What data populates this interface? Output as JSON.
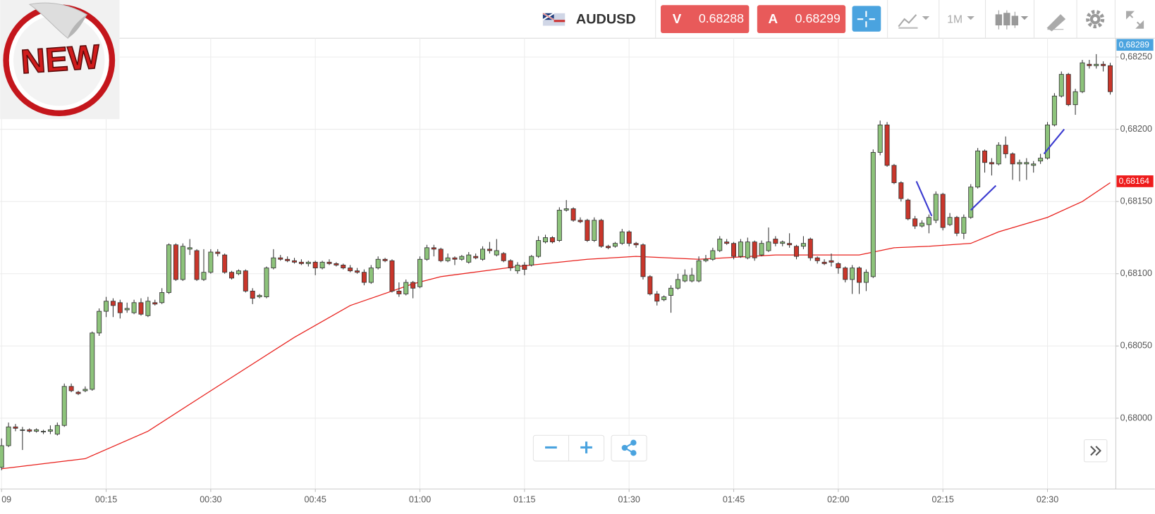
{
  "badge": "NEW",
  "toolbar": {
    "symbol": "AUDUSD",
    "sell": {
      "label": "V",
      "price": 0.68288
    },
    "buy": {
      "label": "A",
      "price": 0.68299
    },
    "timeframe": "1M"
  },
  "chart_data": {
    "type": "candlestick",
    "up_color": "#8dc37b",
    "down_color": "#c9362b",
    "grid": true,
    "xlim": [
      -0.2,
      159.8
    ],
    "ylim": [
      0.67951,
      0.68263
    ],
    "yticks": [
      {
        "value": 0.68,
        "label": "0,68000"
      },
      {
        "value": 0.6805,
        "label": "0,68050"
      },
      {
        "value": 0.681,
        "label": "0,68100"
      },
      {
        "value": 0.6815,
        "label": "0,68150"
      },
      {
        "value": 0.682,
        "label": "0,68200"
      },
      {
        "value": 0.6825,
        "label": "0,68250"
      }
    ],
    "xticks": [
      {
        "value": 0,
        "label": "09"
      },
      {
        "value": 15,
        "label": "00:15"
      },
      {
        "value": 30,
        "label": "00:30"
      },
      {
        "value": 45,
        "label": "00:45"
      },
      {
        "value": 60,
        "label": "01:00"
      },
      {
        "value": 75,
        "label": "01:15"
      },
      {
        "value": 90,
        "label": "01:30"
      },
      {
        "value": 105,
        "label": "01:45"
      },
      {
        "value": 120,
        "label": "02:00"
      },
      {
        "value": 135,
        "label": "02:15"
      },
      {
        "value": 150,
        "label": "02:30"
      }
    ],
    "x": [
      0,
      1,
      2,
      3,
      4,
      5,
      6,
      7,
      8,
      9,
      10,
      11,
      12,
      13,
      14,
      15,
      16,
      17,
      18,
      19,
      20,
      21,
      22,
      23,
      24,
      25,
      26,
      27,
      28,
      29,
      30,
      31,
      32,
      33,
      34,
      35,
      36,
      37,
      38,
      39,
      40,
      41,
      42,
      43,
      44,
      45,
      46,
      47,
      48,
      49,
      50,
      51,
      52,
      53,
      54,
      55,
      56,
      57,
      58,
      59,
      60,
      61,
      62,
      63,
      64,
      65,
      66,
      67,
      68,
      69,
      70,
      71,
      72,
      73,
      74,
      75,
      76,
      77,
      78,
      79,
      80,
      81,
      82,
      83,
      84,
      85,
      86,
      87,
      88,
      89,
      90,
      91,
      92,
      93,
      94,
      95,
      96,
      97,
      98,
      99,
      100,
      101,
      102,
      103,
      104,
      105,
      106,
      107,
      108,
      109,
      110,
      111,
      112,
      113,
      114,
      115,
      116,
      117,
      118,
      119,
      120,
      121,
      122,
      123,
      124,
      125,
      126,
      127,
      128,
      129,
      130,
      131,
      132,
      133,
      134,
      135,
      136,
      137,
      138,
      139,
      140,
      141,
      142,
      143,
      144,
      145,
      146,
      147,
      148,
      149,
      150,
      151,
      152,
      153,
      154,
      155,
      156,
      157,
      158,
      159
    ],
    "open": [
      0.67966,
      0.67981,
      0.67994,
      0.67992,
      0.67992,
      0.67991,
      0.67991,
      0.67991,
      0.67989,
      0.67995,
      0.68022,
      0.68018,
      0.68019,
      0.6802,
      0.68059,
      0.68074,
      0.68081,
      0.6808,
      0.68075,
      0.68073,
      0.6808,
      0.68071,
      0.6808,
      0.6808,
      0.68087,
      0.6812,
      0.68096,
      0.68117,
      0.68116,
      0.68096,
      0.68101,
      0.68115,
      0.68113,
      0.68101,
      0.681,
      0.68102,
      0.68088,
      0.68084,
      0.68084,
      0.68104,
      0.68111,
      0.6811,
      0.68109,
      0.68108,
      0.68107,
      0.68108,
      0.68104,
      0.68108,
      0.68107,
      0.68106,
      0.68104,
      0.68102,
      0.68101,
      0.68094,
      0.68104,
      0.6811,
      0.68109,
      0.68088,
      0.68086,
      0.68094,
      0.68091,
      0.6811,
      0.68118,
      0.68117,
      0.68109,
      0.68111,
      0.6811,
      0.68108,
      0.68112,
      0.6811,
      0.68117,
      0.68113,
      0.68114,
      0.68109,
      0.68102,
      0.68106,
      0.68106,
      0.68112,
      0.68122,
      0.68125,
      0.68123,
      0.68144,
      0.68145,
      0.68137,
      0.68137,
      0.68123,
      0.68137,
      0.68119,
      0.68119,
      0.68121,
      0.68129,
      0.68121,
      0.6812,
      0.68098,
      0.68086,
      0.68082,
      0.68085,
      0.6809,
      0.68095,
      0.68095,
      0.68095,
      0.68109,
      0.6811,
      0.68116,
      0.68122,
      0.68121,
      0.68112,
      0.68111,
      0.68122,
      0.68113,
      0.68116,
      0.68124,
      0.68121,
      0.68121,
      0.68119,
      0.68119,
      0.68124,
      0.68111,
      0.68108,
      0.68109,
      0.68107,
      0.68104,
      0.68096,
      0.68104,
      0.68094,
      0.68098,
      0.68184,
      0.68203,
      0.68175,
      0.68163,
      0.68151,
      0.68138,
      0.68133,
      0.68134,
      0.68137,
      0.68155,
      0.68134,
      0.68139,
      0.68128,
      0.68139,
      0.6816,
      0.68185,
      0.68177,
      0.68176,
      0.68189,
      0.68183,
      0.68176,
      0.68176,
      0.68175,
      0.68178,
      0.6818,
      0.68203,
      0.68223,
      0.68238,
      0.68217,
      0.68226,
      0.68245,
      0.68244,
      0.68245,
      0.68244
    ],
    "high": [
      0.67986,
      0.67997,
      0.67996,
      0.67994,
      0.67993,
      0.67993,
      0.67992,
      0.67995,
      0.67997,
      0.68024,
      0.68024,
      0.68019,
      0.68022,
      0.6806,
      0.68076,
      0.68084,
      0.68083,
      0.68082,
      0.6808,
      0.68082,
      0.68083,
      0.68084,
      0.68082,
      0.6809,
      0.68121,
      0.68121,
      0.68121,
      0.68124,
      0.68117,
      0.68117,
      0.68117,
      0.68117,
      0.68114,
      0.68102,
      0.68103,
      0.68103,
      0.6809,
      0.68086,
      0.68105,
      0.68117,
      0.68113,
      0.68112,
      0.68111,
      0.6811,
      0.68109,
      0.68109,
      0.68109,
      0.6811,
      0.68108,
      0.68107,
      0.68106,
      0.68104,
      0.68103,
      0.68106,
      0.68112,
      0.68111,
      0.6811,
      0.68094,
      0.68096,
      0.68095,
      0.68112,
      0.6812,
      0.6812,
      0.68118,
      0.68114,
      0.68112,
      0.68113,
      0.68115,
      0.68114,
      0.68119,
      0.68122,
      0.68124,
      0.68115,
      0.6811,
      0.68108,
      0.68108,
      0.68113,
      0.68126,
      0.68127,
      0.68126,
      0.68146,
      0.68151,
      0.68146,
      0.68139,
      0.68138,
      0.68139,
      0.68138,
      0.6812,
      0.68122,
      0.68131,
      0.6813,
      0.68122,
      0.68121,
      0.68099,
      0.68088,
      0.68085,
      0.68092,
      0.681,
      0.68103,
      0.68104,
      0.68112,
      0.68113,
      0.68118,
      0.68126,
      0.68124,
      0.68122,
      0.68124,
      0.68125,
      0.68123,
      0.68123,
      0.68132,
      0.68126,
      0.68123,
      0.68128,
      0.6812,
      0.68126,
      0.68125,
      0.68112,
      0.6811,
      0.68114,
      0.68108,
      0.68105,
      0.68106,
      0.68105,
      0.68103,
      0.68186,
      0.68206,
      0.68205,
      0.68176,
      0.68164,
      0.68152,
      0.6814,
      0.68137,
      0.68141,
      0.68157,
      0.68156,
      0.68142,
      0.6814,
      0.68141,
      0.68162,
      0.68187,
      0.68186,
      0.6818,
      0.68191,
      0.68195,
      0.68184,
      0.68179,
      0.6818,
      0.68178,
      0.68183,
      0.68205,
      0.68225,
      0.6824,
      0.68239,
      0.68228,
      0.68248,
      0.68248,
      0.68252,
      0.68247,
      0.68246
    ],
    "low": [
      0.67964,
      0.6798,
      0.67991,
      0.67978,
      0.6799,
      0.6799,
      0.67989,
      0.67989,
      0.67988,
      0.67994,
      0.68018,
      0.68016,
      0.68018,
      0.68019,
      0.68057,
      0.6807,
      0.6807,
      0.68069,
      0.68073,
      0.68072,
      0.68071,
      0.6807,
      0.68078,
      0.68079,
      0.68086,
      0.68095,
      0.68095,
      0.68113,
      0.68095,
      0.68095,
      0.681,
      0.68112,
      0.681,
      0.68096,
      0.68099,
      0.68087,
      0.68079,
      0.68083,
      0.68083,
      0.68103,
      0.68109,
      0.68108,
      0.68107,
      0.68106,
      0.68105,
      0.68099,
      0.68103,
      0.68106,
      0.68105,
      0.68103,
      0.68101,
      0.681,
      0.68092,
      0.68093,
      0.68103,
      0.68108,
      0.68087,
      0.68084,
      0.68085,
      0.68083,
      0.6809,
      0.68109,
      0.68112,
      0.68108,
      0.68108,
      0.68106,
      0.68109,
      0.68107,
      0.6811,
      0.68109,
      0.68114,
      0.68112,
      0.68108,
      0.68102,
      0.681,
      0.68099,
      0.68105,
      0.68111,
      0.68121,
      0.68121,
      0.68122,
      0.68143,
      0.68136,
      0.68135,
      0.68122,
      0.68122,
      0.68118,
      0.68117,
      0.68118,
      0.6812,
      0.68119,
      0.68118,
      0.68096,
      0.68085,
      0.68078,
      0.68081,
      0.68073,
      0.68089,
      0.68094,
      0.68094,
      0.68094,
      0.68108,
      0.68109,
      0.68115,
      0.6812,
      0.6811,
      0.68111,
      0.6811,
      0.68109,
      0.68112,
      0.68115,
      0.68119,
      0.68119,
      0.68118,
      0.6811,
      0.68117,
      0.68109,
      0.68107,
      0.68106,
      0.68105,
      0.681,
      0.68094,
      0.68086,
      0.68086,
      0.68088,
      0.68097,
      0.68182,
      0.68174,
      0.68162,
      0.6815,
      0.68137,
      0.68131,
      0.68132,
      0.68128,
      0.68135,
      0.6813,
      0.68133,
      0.68126,
      0.68124,
      0.68138,
      0.68159,
      0.6817,
      0.68168,
      0.68175,
      0.6818,
      0.68165,
      0.68164,
      0.68165,
      0.6817,
      0.68176,
      0.68179,
      0.68202,
      0.68222,
      0.68216,
      0.6821,
      0.68225,
      0.68242,
      0.68242,
      0.6824,
      0.68224
    ],
    "close": [
      0.67981,
      0.67994,
      0.67993,
      0.67992,
      0.67991,
      0.67992,
      0.67991,
      0.67992,
      0.67995,
      0.68022,
      0.68019,
      0.68017,
      0.6802,
      0.68059,
      0.68074,
      0.68081,
      0.68078,
      0.68073,
      0.68076,
      0.6808,
      0.68072,
      0.68081,
      0.68079,
      0.68087,
      0.6812,
      0.68096,
      0.68119,
      0.68118,
      0.68096,
      0.68101,
      0.68115,
      0.68114,
      0.68101,
      0.68097,
      0.68102,
      0.68088,
      0.68083,
      0.68085,
      0.68104,
      0.68111,
      0.6811,
      0.68109,
      0.68108,
      0.68107,
      0.68108,
      0.68104,
      0.68108,
      0.68107,
      0.68106,
      0.68104,
      0.68102,
      0.68101,
      0.68094,
      0.68104,
      0.6811,
      0.68109,
      0.68088,
      0.68086,
      0.68094,
      0.6809,
      0.6811,
      0.68118,
      0.68117,
      0.68109,
      0.68111,
      0.6811,
      0.68112,
      0.68113,
      0.68111,
      0.68117,
      0.68116,
      0.68116,
      0.68109,
      0.68104,
      0.68106,
      0.68103,
      0.68112,
      0.68123,
      0.68125,
      0.68122,
      0.68144,
      0.68145,
      0.68137,
      0.68136,
      0.68123,
      0.68137,
      0.68119,
      0.68118,
      0.68121,
      0.68129,
      0.68121,
      0.6812,
      0.68098,
      0.68086,
      0.68081,
      0.68084,
      0.6809,
      0.68096,
      0.68099,
      0.68099,
      0.68109,
      0.6811,
      0.68116,
      0.68124,
      0.68121,
      0.68112,
      0.68122,
      0.68122,
      0.68111,
      0.68121,
      0.68122,
      0.68121,
      0.68122,
      0.6812,
      0.68112,
      0.68121,
      0.68111,
      0.68109,
      0.68107,
      0.68108,
      0.68104,
      0.68096,
      0.68104,
      0.68094,
      0.68101,
      0.68184,
      0.68203,
      0.68175,
      0.68163,
      0.68152,
      0.68138,
      0.68133,
      0.68135,
      0.68139,
      0.68155,
      0.68132,
      0.68139,
      0.68128,
      0.68139,
      0.6816,
      0.68185,
      0.68177,
      0.68176,
      0.68189,
      0.68183,
      0.68176,
      0.68177,
      0.68177,
      0.68176,
      0.6818,
      0.68203,
      0.68223,
      0.68238,
      0.68217,
      0.68226,
      0.68246,
      0.68244,
      0.68245,
      0.68244,
      0.68226
    ],
    "moving_average": {
      "color": "#e8201c",
      "x": [
        0,
        12,
        21,
        30,
        42,
        50,
        59,
        63,
        74,
        84,
        91,
        100,
        111,
        123,
        128,
        133,
        139,
        143,
        150,
        155,
        159
      ],
      "values": [
        0.67965,
        0.67972,
        0.67991,
        0.68019,
        0.68056,
        0.68078,
        0.68093,
        0.68098,
        0.68105,
        0.6811,
        0.68112,
        0.6811,
        0.68113,
        0.68113,
        0.68118,
        0.68119,
        0.68121,
        0.68129,
        0.68139,
        0.6815,
        0.68163
      ]
    },
    "drawings": [
      {
        "color": "#3a3ad0",
        "x": [
          131.2,
          133.4
        ],
        "values": [
          0.68164,
          0.6814
        ]
      },
      {
        "color": "#3a3ad0",
        "x": [
          139.0,
          142.6
        ],
        "values": [
          0.68144,
          0.68161
        ]
      },
      {
        "color": "#3a3ad0",
        "x": [
          149.5,
          152.4
        ],
        "values": [
          0.68183,
          0.682
        ]
      }
    ],
    "price_tags": [
      {
        "value": 0.68289,
        "label": "0,68289",
        "color": "#4aa3df"
      },
      {
        "value": 0.68164,
        "label": "0,68164",
        "color": "#ee1c1c"
      }
    ]
  }
}
